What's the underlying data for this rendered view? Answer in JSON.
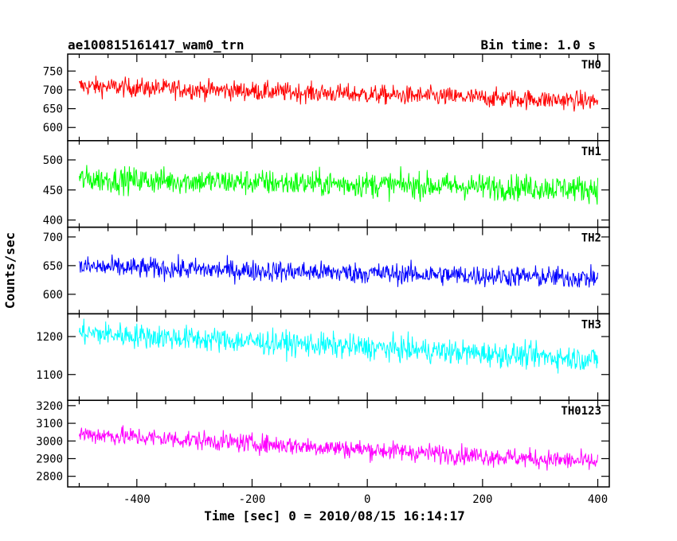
{
  "header": {
    "title": "ae100815161417_wam0_trn",
    "bin_time": "Bin time: 1.0 s"
  },
  "axes": {
    "xlabel": "Time [sec] 0 = 2010/08/15 16:14:17",
    "ylabel": "Counts/sec"
  },
  "chart_data": {
    "type": "line",
    "title": "ae100815161417_wam0_trn",
    "xlabel": "Time [sec] 0 = 2010/08/15 16:14:17",
    "ylabel": "Counts/sec",
    "xlim": [
      -520,
      420
    ],
    "x_range": [
      -500,
      400
    ],
    "x_step": 1.0,
    "xticks": [
      -400,
      -200,
      0,
      200,
      400
    ],
    "grid": false,
    "panels": [
      {
        "name": "TH0",
        "color": "#ff0000",
        "ylim": [
          565,
          795
        ],
        "yticks": [
          600,
          650,
          700,
          750
        ],
        "mean_start": 710,
        "mean_end": 670,
        "noise_amplitude": 33
      },
      {
        "name": "TH1",
        "color": "#00ff00",
        "ylim": [
          388,
          532
        ],
        "yticks": [
          400,
          450,
          500
        ],
        "mean_start": 468,
        "mean_end": 452,
        "noise_amplitude": 28
      },
      {
        "name": "TH2",
        "color": "#0000ff",
        "ylim": [
          566,
          717
        ],
        "yticks": [
          600,
          650,
          700
        ],
        "mean_start": 648,
        "mean_end": 628,
        "noise_amplitude": 24
      },
      {
        "name": "TH3",
        "color": "#00ffff",
        "ylim": [
          1032,
          1260
        ],
        "yticks": [
          1100,
          1200
        ],
        "mean_start": 1210,
        "mean_end": 1140,
        "noise_amplitude": 42
      },
      {
        "name": "TH0123",
        "color": "#ff00ff",
        "ylim": [
          2740,
          3230
        ],
        "yticks": [
          2800,
          2900,
          3000,
          3100,
          3200
        ],
        "mean_start": 3040,
        "mean_end": 2880,
        "noise_amplitude": 70
      }
    ]
  }
}
